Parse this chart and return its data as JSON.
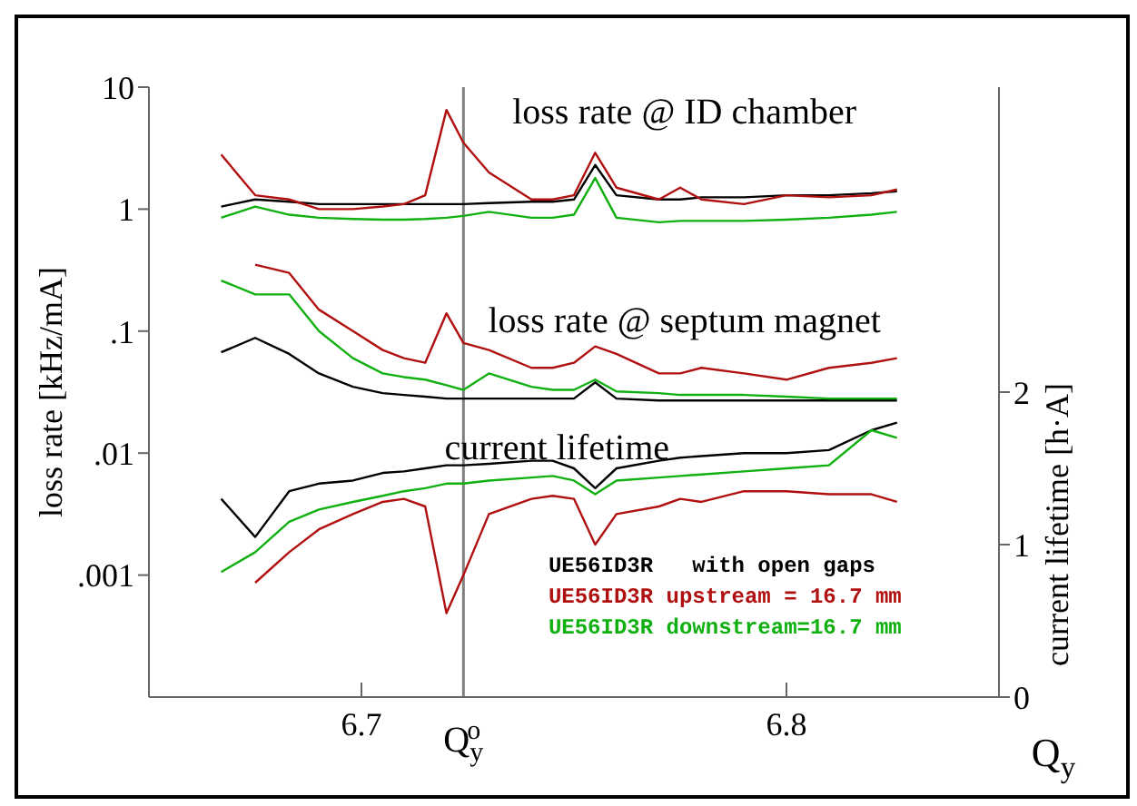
{
  "chart_data": {
    "type": "line",
    "xlabel": "Q$_{y}$",
    "ylabel": "loss rate [kHz/mA]",
    "y2label": "current lifetime [h·A]",
    "annotations": [
      "loss rate @ ID chamber",
      "loss rate @ septum magnet",
      "current lifetime"
    ],
    "x": [
      6.667,
      6.675,
      6.683,
      6.69,
      6.698,
      6.705,
      6.71,
      6.715,
      6.72,
      6.724,
      6.73,
      6.74,
      6.745,
      6.75,
      6.755,
      6.76,
      6.77,
      6.775,
      6.78,
      6.79,
      6.8,
      6.81,
      6.82,
      6.826
    ],
    "series": [
      {
        "name": "UE56ID3R   with open gaps",
        "color": "#000000",
        "values": [
          1.05,
          1.2,
          1.15,
          1.1,
          1.1,
          1.1,
          1.1,
          1.1,
          1.1,
          1.1,
          1.12,
          1.15,
          1.15,
          1.2,
          2.3,
          1.3,
          1.2,
          1.2,
          1.25,
          1.25,
          1.3,
          1.3,
          1.35,
          1.4
        ]
      },
      {
        "name": "UE56ID3R upstream = 16.7 mm",
        "color": "#b01010",
        "values": [
          2.8,
          1.3,
          1.2,
          1.0,
          1.0,
          1.05,
          1.1,
          1.3,
          6.5,
          3.5,
          2.0,
          1.2,
          1.2,
          1.3,
          2.9,
          1.5,
          1.2,
          1.5,
          1.2,
          1.1,
          1.3,
          1.25,
          1.3,
          1.45
        ]
      },
      {
        "name": "UE56ID3R downstream=16.7 mm",
        "color": "#10b010",
        "values": [
          0.85,
          1.05,
          0.9,
          0.85,
          0.83,
          0.82,
          0.82,
          0.83,
          0.85,
          0.88,
          0.95,
          0.85,
          0.85,
          0.9,
          1.8,
          0.85,
          0.78,
          0.8,
          0.8,
          0.8,
          0.82,
          0.85,
          0.9,
          0.95
        ]
      },
      {
        "color": "#000000",
        "values": [
          0.067,
          0.088,
          0.065,
          0.045,
          0.035,
          0.031,
          0.03,
          0.029,
          0.028,
          0.028,
          0.028,
          0.028,
          0.028,
          0.028,
          0.038,
          0.028,
          0.027,
          0.027,
          0.027,
          0.027,
          0.027,
          0.027,
          0.027,
          0.027
        ]
      },
      {
        "color": "#b01010",
        "values": [
          null,
          0.35,
          0.3,
          0.15,
          0.1,
          0.07,
          0.06,
          0.055,
          0.14,
          0.08,
          0.07,
          0.05,
          0.05,
          0.055,
          0.075,
          0.065,
          0.045,
          0.045,
          0.05,
          0.045,
          0.04,
          0.05,
          0.055,
          0.06
        ]
      },
      {
        "color": "#10b010",
        "values": [
          0.26,
          0.2,
          0.2,
          0.1,
          0.06,
          0.045,
          0.042,
          0.04,
          0.036,
          0.033,
          0.045,
          0.035,
          0.033,
          0.033,
          0.04,
          0.032,
          0.031,
          0.03,
          0.03,
          0.03,
          0.029,
          0.028,
          0.028,
          0.028
        ]
      },
      {
        "color": "#000000",
        "axis": "y2",
        "values": [
          1.3,
          1.05,
          1.35,
          1.4,
          1.42,
          1.47,
          1.48,
          1.5,
          1.52,
          1.52,
          1.53,
          1.55,
          1.55,
          1.5,
          1.37,
          1.5,
          1.55,
          1.57,
          1.58,
          1.6,
          1.6,
          1.62,
          1.75,
          1.8
        ]
      },
      {
        "color": "#b01010",
        "axis": "y2",
        "values": [
          null,
          0.75,
          0.95,
          1.1,
          1.2,
          1.28,
          1.3,
          1.25,
          0.55,
          0.8,
          1.2,
          1.3,
          1.32,
          1.3,
          1.0,
          1.2,
          1.25,
          1.3,
          1.28,
          1.35,
          1.35,
          1.33,
          1.33,
          1.28
        ]
      },
      {
        "color": "#10b010",
        "axis": "y2",
        "values": [
          0.82,
          0.95,
          1.15,
          1.23,
          1.28,
          1.32,
          1.35,
          1.37,
          1.4,
          1.4,
          1.42,
          1.44,
          1.45,
          1.42,
          1.33,
          1.42,
          1.44,
          1.45,
          1.46,
          1.48,
          1.5,
          1.52,
          1.75,
          1.7
        ]
      }
    ],
    "log": "y",
    "xlim": [
      6.65,
      6.85
    ],
    "xticks": [
      6.7,
      6.8
    ],
    "ylim": [
      0.0001,
      10
    ],
    "yticks": [
      {
        "value": 10,
        "label": "10"
      },
      {
        "value": 1,
        "label": "1"
      },
      {
        "value": 0.1,
        "label": ".1"
      },
      {
        "value": 0.01,
        "label": ".01"
      },
      {
        "value": 0.001,
        "label": ".001"
      }
    ],
    "y2lim": [
      0,
      4
    ],
    "y2ticks": [
      0,
      1,
      2
    ],
    "ref_lines": [
      {
        "axis": "x",
        "value": 6.724,
        "label": "Q$_{y}$$^{o}$",
        "color": "#808080"
      }
    ],
    "legend": "bottom right",
    "grid": false
  }
}
